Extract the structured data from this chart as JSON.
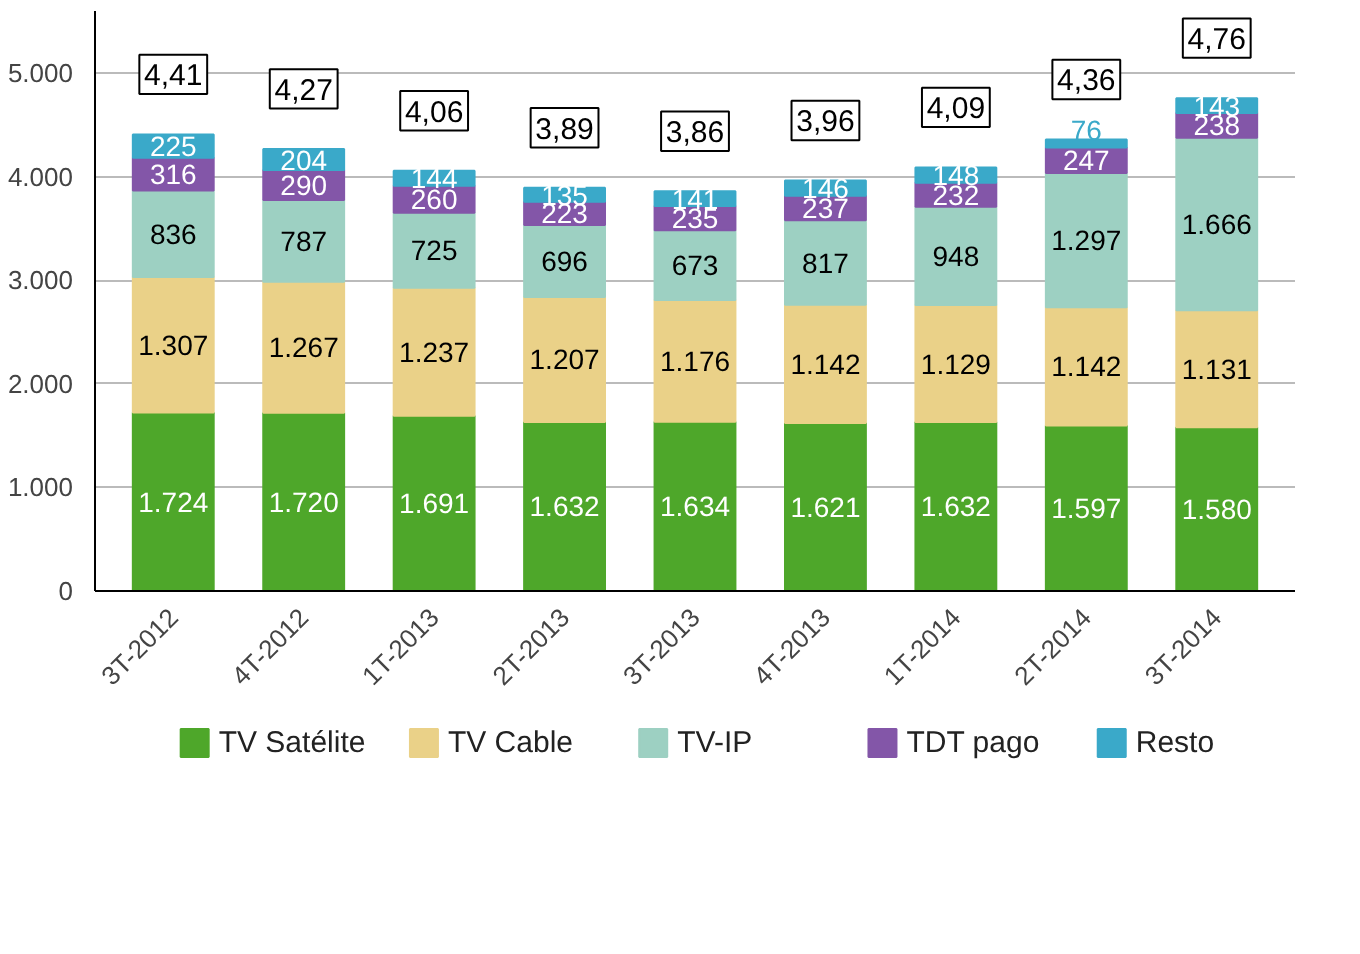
{
  "chart_data": {
    "type": "bar",
    "stacked": true,
    "categories": [
      "3T-2012",
      "4T-2012",
      "1T-2013",
      "2T-2013",
      "3T-2013",
      "4T-2013",
      "1T-2014",
      "2T-2014",
      "3T-2014"
    ],
    "series": [
      {
        "name": "TV Satélite",
        "color": "#4ea72a",
        "values": [
          1724,
          1720,
          1691,
          1632,
          1634,
          1621,
          1632,
          1597,
          1580
        ],
        "value_labels": [
          "1.724",
          "1.720",
          "1.691",
          "1.632",
          "1.634",
          "1.621",
          "1.632",
          "1.597",
          "1.580"
        ]
      },
      {
        "name": "TV Cable",
        "color": "#ead188",
        "values": [
          1307,
          1267,
          1237,
          1207,
          1176,
          1142,
          1129,
          1142,
          1131
        ],
        "value_labels": [
          "1.307",
          "1.267",
          "1.237",
          "1.207",
          "1.176",
          "1.142",
          "1.129",
          "1.142",
          "1.131"
        ]
      },
      {
        "name": "TV-IP",
        "color": "#9dd0c2",
        "values": [
          836,
          787,
          725,
          696,
          673,
          817,
          948,
          1297,
          1666
        ],
        "value_labels": [
          "836",
          "787",
          "725",
          "696",
          "673",
          "817",
          "948",
          "1.297",
          "1.666"
        ]
      },
      {
        "name": "TDT pago",
        "color": "#8356a8",
        "values": [
          316,
          290,
          260,
          223,
          235,
          237,
          232,
          247,
          238
        ],
        "value_labels": [
          "316",
          "290",
          "260",
          "223",
          "235",
          "237",
          "232",
          "247",
          "238"
        ]
      },
      {
        "name": "Resto",
        "color": "#3aa9c9",
        "values": [
          225,
          204,
          144,
          135,
          141,
          146,
          148,
          76,
          143
        ],
        "value_labels": [
          "225",
          "204",
          "144",
          "135",
          "141",
          "146",
          "148",
          "76",
          "143"
        ]
      }
    ],
    "annotations": [
      {
        "text": "4,41",
        "x": "3T-2012",
        "y": 4408
      },
      {
        "text": "4,27",
        "x": "4T-2012",
        "y": 4268
      },
      {
        "text": "4,06",
        "x": "1T-2013",
        "y": 4057
      },
      {
        "text": "3,89",
        "x": "2T-2013",
        "y": 3893
      },
      {
        "text": "3,86",
        "x": "3T-2013",
        "y": 3859
      },
      {
        "text": "3,96",
        "x": "4T-2013",
        "y": 3963
      },
      {
        "text": "4,09",
        "x": "1T-2014",
        "y": 4089
      },
      {
        "text": "4,36",
        "x": "2T-2014",
        "y": 4359
      },
      {
        "text": "4,76",
        "x": "3T-2014",
        "y": 4758
      }
    ],
    "ylim": [
      0,
      5600
    ],
    "yticks": [
      0,
      {
        "value": 1000,
        "label": "1.000"
      },
      {
        "value": 2000,
        "label": "2.000"
      },
      {
        "value": 3000,
        "label": "3.000"
      },
      {
        "value": 4000,
        "label": "4.000"
      },
      {
        "value": 5000,
        "label": "5.000"
      }
    ],
    "grid": "y",
    "legend": "bottom"
  }
}
